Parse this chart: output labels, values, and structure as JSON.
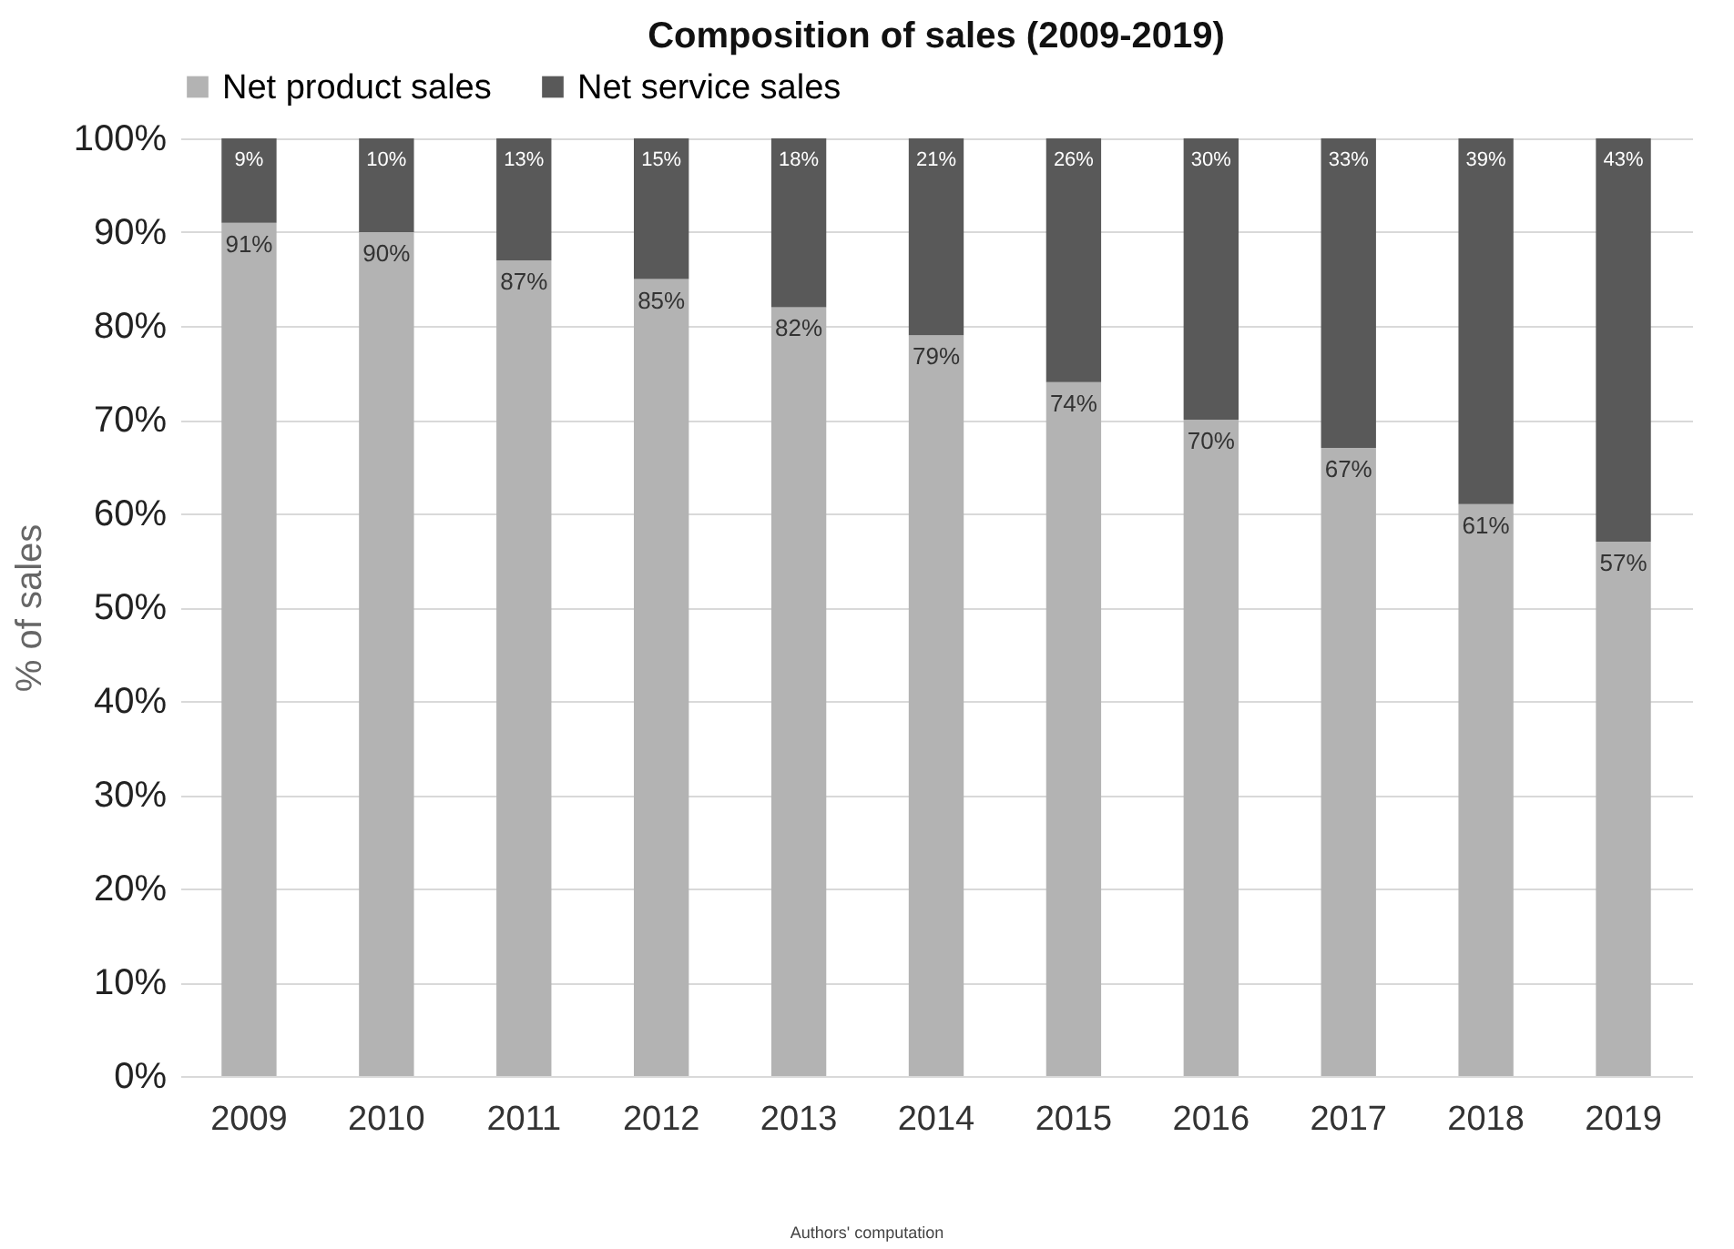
{
  "chart_data": {
    "type": "bar",
    "title": "Composition of sales (2009-2019)",
    "ylabel": "% of sales",
    "stacked": true,
    "grid": "y",
    "legend": "top",
    "categories": [
      "2009",
      "2010",
      "2011",
      "2012",
      "2013",
      "2014",
      "2015",
      "2016",
      "2017",
      "2018",
      "2019"
    ],
    "series": [
      {
        "name": "Net product sales",
        "color": "#b3b3b3",
        "values": [
          91,
          90,
          87,
          85,
          82,
          79,
          74,
          70,
          67,
          61,
          57
        ],
        "value_labels": [
          "91%",
          "90%",
          "87%",
          "85%",
          "82%",
          "79%",
          "74%",
          "70%",
          "67%",
          "61%",
          "57%"
        ]
      },
      {
        "name": "Net service sales",
        "color": "#595959",
        "values": [
          9,
          10,
          13,
          15,
          18,
          21,
          26,
          30,
          33,
          39,
          43
        ],
        "value_labels": [
          "9%",
          "10%",
          "13%",
          "15%",
          "18%",
          "21%",
          "26%",
          "30%",
          "33%",
          "39%",
          "43%"
        ]
      }
    ],
    "ylim": [
      0,
      100
    ],
    "yticks": [
      {
        "value": 0,
        "label": "0%"
      },
      {
        "value": 10,
        "label": "10%"
      },
      {
        "value": 20,
        "label": "20%"
      },
      {
        "value": 30,
        "label": "30%"
      },
      {
        "value": 40,
        "label": "40%"
      },
      {
        "value": 50,
        "label": "50%"
      },
      {
        "value": 60,
        "label": "60%"
      },
      {
        "value": 70,
        "label": "70%"
      },
      {
        "value": 80,
        "label": "80%"
      },
      {
        "value": 90,
        "label": "90%"
      },
      {
        "value": 100,
        "label": "100%"
      }
    ],
    "annotations": [
      "Authors' computation"
    ]
  }
}
